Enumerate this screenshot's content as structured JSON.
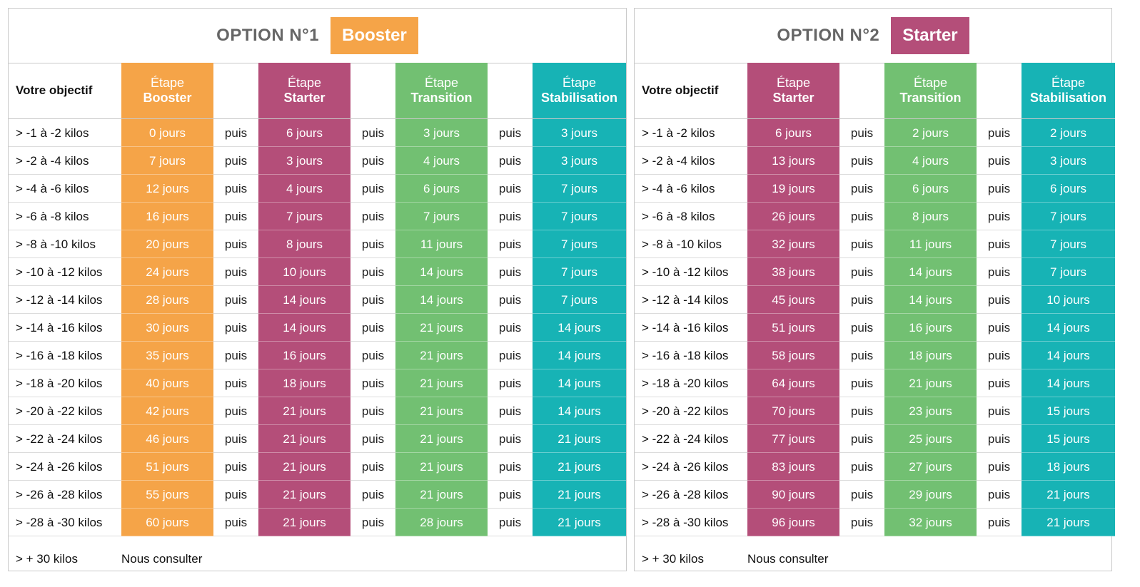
{
  "colors": {
    "orange": "#f5a448",
    "pink": "#b44e79",
    "green": "#72c072",
    "teal": "#17b3b5"
  },
  "option1": {
    "title": "OPTION N°1",
    "badge": "Booster",
    "objective_header": "Votre objectif",
    "etape_word": "Étape",
    "stages": [
      "Booster",
      "Starter",
      "Transition",
      "Stabilisation"
    ],
    "puis": "puis",
    "rows": [
      [
        "> -1 à -2 kilos",
        "0 jours",
        "6 jours",
        "3 jours",
        "3 jours"
      ],
      [
        "> -2 à -4 kilos",
        "7 jours",
        "3 jours",
        "4 jours",
        "3 jours"
      ],
      [
        "> -4 à -6 kilos",
        "12 jours",
        "4 jours",
        "6 jours",
        "7 jours"
      ],
      [
        "> -6 à -8 kilos",
        "16 jours",
        "7 jours",
        "7 jours",
        "7 jours"
      ],
      [
        "> -8 à -10 kilos",
        "20 jours",
        "8 jours",
        "11 jours",
        "7 jours"
      ],
      [
        "> -10 à -12 kilos",
        "24 jours",
        "10 jours",
        "14 jours",
        "7 jours"
      ],
      [
        "> -12 à -14 kilos",
        "28 jours",
        "14 jours",
        "14 jours",
        "7 jours"
      ],
      [
        "> -14 à -16 kilos",
        "30 jours",
        "14 jours",
        "21 jours",
        "14 jours"
      ],
      [
        "> -16 à -18 kilos",
        "35 jours",
        "16 jours",
        "21 jours",
        "14 jours"
      ],
      [
        "> -18 à -20 kilos",
        "40 jours",
        "18 jours",
        "21 jours",
        "14 jours"
      ],
      [
        "> -20 à -22 kilos",
        "42 jours",
        "21 jours",
        "21 jours",
        "14 jours"
      ],
      [
        "> -22 à -24 kilos",
        "46 jours",
        "21 jours",
        "21 jours",
        "21 jours"
      ],
      [
        "> -24 à -26 kilos",
        "51 jours",
        "21 jours",
        "21 jours",
        "21 jours"
      ],
      [
        "> -26 à -28 kilos",
        "55 jours",
        "21 jours",
        "21 jours",
        "21 jours"
      ],
      [
        "> -28 à -30 kilos",
        "60 jours",
        "21 jours",
        "28 jours",
        "21 jours"
      ]
    ],
    "footer_label": "> + 30 kilos",
    "footer_text": "Nous consulter"
  },
  "option2": {
    "title": "OPTION N°2",
    "badge": "Starter",
    "objective_header": "Votre objectif",
    "etape_word": "Étape",
    "stages": [
      "Starter",
      "Transition",
      "Stabilisation"
    ],
    "puis": "puis",
    "rows": [
      [
        "> -1 à -2 kilos",
        "6 jours",
        "2 jours",
        "2 jours"
      ],
      [
        "> -2 à -4 kilos",
        "13 jours",
        "4 jours",
        "3 jours"
      ],
      [
        "> -4 à -6 kilos",
        "19 jours",
        "6 jours",
        "6 jours"
      ],
      [
        "> -6 à -8 kilos",
        "26 jours",
        "8 jours",
        "7 jours"
      ],
      [
        "> -8 à -10 kilos",
        "32 jours",
        "11 jours",
        "7 jours"
      ],
      [
        "> -10 à -12 kilos",
        "38 jours",
        "14 jours",
        "7 jours"
      ],
      [
        "> -12 à -14 kilos",
        "45 jours",
        "14 jours",
        "10 jours"
      ],
      [
        "> -14 à -16 kilos",
        "51 jours",
        "16 jours",
        "14 jours"
      ],
      [
        "> -16 à -18 kilos",
        "58 jours",
        "18 jours",
        "14 jours"
      ],
      [
        "> -18 à -20 kilos",
        "64 jours",
        "21 jours",
        "14 jours"
      ],
      [
        "> -20 à -22 kilos",
        "70 jours",
        "23 jours",
        "15 jours"
      ],
      [
        "> -22 à -24 kilos",
        "77 jours",
        "25 jours",
        "15 jours"
      ],
      [
        "> -24 à -26 kilos",
        "83 jours",
        "27 jours",
        "18 jours"
      ],
      [
        "> -26 à -28 kilos",
        "90 jours",
        "29 jours",
        "21 jours"
      ],
      [
        "> -28 à -30 kilos",
        "96 jours",
        "32 jours",
        "21 jours"
      ]
    ],
    "footer_label": "> + 30 kilos",
    "footer_text": "Nous consulter"
  }
}
